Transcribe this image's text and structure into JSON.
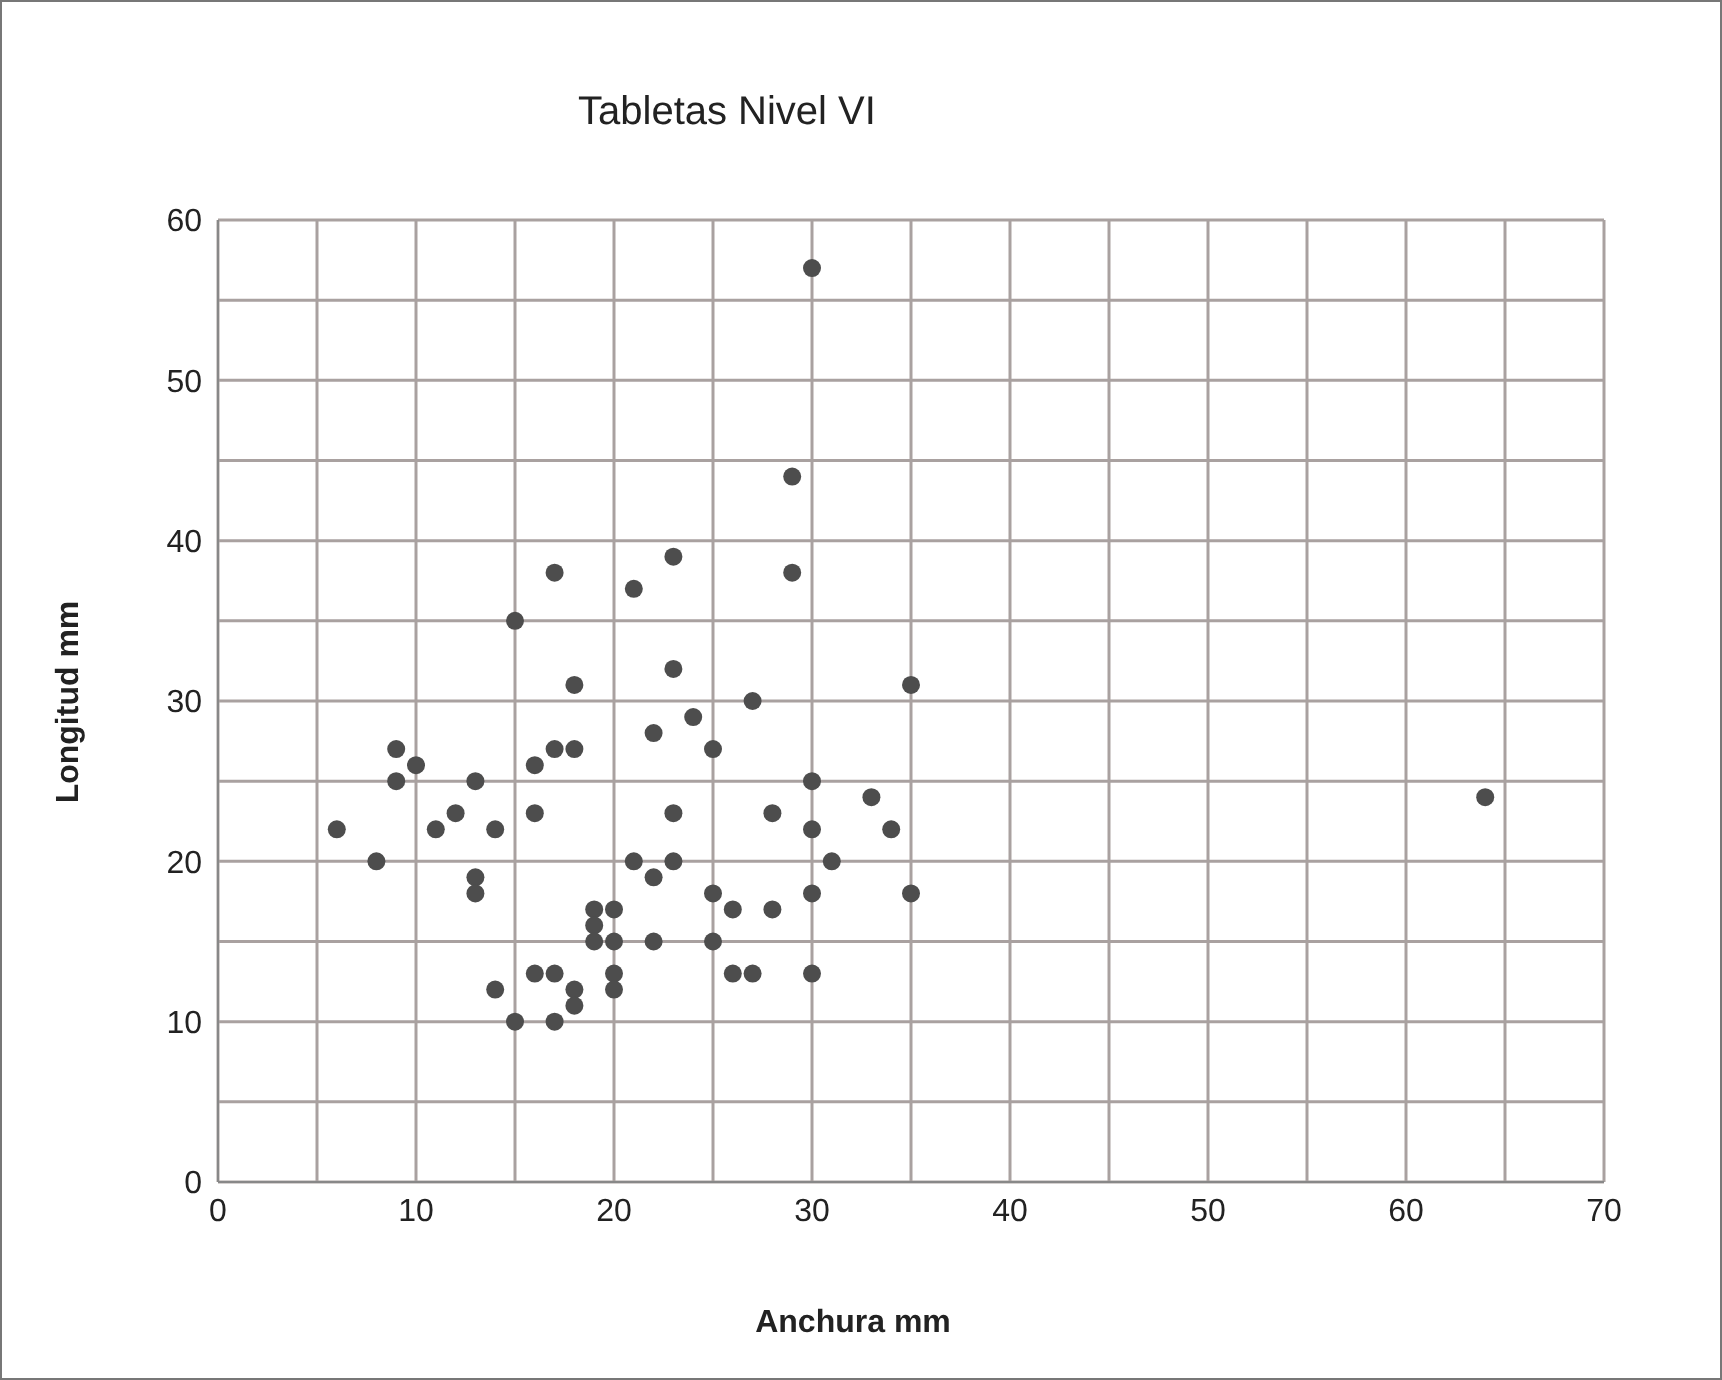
{
  "chart_data": {
    "type": "scatter",
    "title": "Tabletas Nivel VI",
    "xlabel": "Anchura mm",
    "ylabel": "Longitud mm",
    "x": [
      17,
      21,
      15,
      18,
      9,
      10,
      9,
      13,
      16,
      17,
      18,
      12,
      16,
      6,
      11,
      14,
      8,
      13,
      13,
      19,
      20,
      19,
      19,
      20,
      16,
      17,
      14,
      18,
      18,
      20,
      20,
      15,
      17,
      30,
      29,
      23,
      29,
      23,
      35,
      27,
      24,
      22,
      25,
      30,
      33,
      23,
      28,
      30,
      34,
      21,
      23,
      31,
      22,
      25,
      30,
      35,
      26,
      28,
      22,
      25,
      26,
      27,
      30,
      64
    ],
    "values": [
      38,
      37,
      35,
      31,
      27,
      26,
      25,
      25,
      26,
      27,
      27,
      23,
      23,
      22,
      22,
      22,
      20,
      19,
      18,
      17,
      17,
      16,
      15,
      15,
      13,
      13,
      12,
      12,
      11,
      13,
      12,
      10,
      10,
      57,
      44,
      39,
      38,
      32,
      31,
      30,
      29,
      28,
      27,
      25,
      24,
      23,
      23,
      22,
      22,
      20,
      20,
      20,
      19,
      18,
      18,
      18,
      17,
      17,
      15,
      15,
      13,
      13,
      13,
      24
    ],
    "color": "#4d4d4d",
    "marker": "circle",
    "xlim": [
      0,
      70
    ],
    "ylim": [
      0,
      60
    ],
    "xticks": [
      0,
      {
        "value": 5,
        "label": null
      },
      10,
      {
        "value": 15,
        "label": null
      },
      20,
      {
        "value": 25,
        "label": null
      },
      30,
      {
        "value": 35,
        "label": null
      },
      40,
      {
        "value": 45,
        "label": null
      },
      50,
      {
        "value": 55,
        "label": null
      },
      60,
      {
        "value": 65,
        "label": null
      },
      70
    ],
    "yticks": [
      0,
      {
        "value": 5,
        "label": null
      },
      10,
      {
        "value": 15,
        "label": null
      },
      20,
      {
        "value": 25,
        "label": null
      },
      30,
      {
        "value": 35,
        "label": null
      },
      40,
      {
        "value": 45,
        "label": null
      },
      50,
      {
        "value": 55,
        "label": null
      },
      60
    ],
    "grid": true,
    "legend": false
  }
}
